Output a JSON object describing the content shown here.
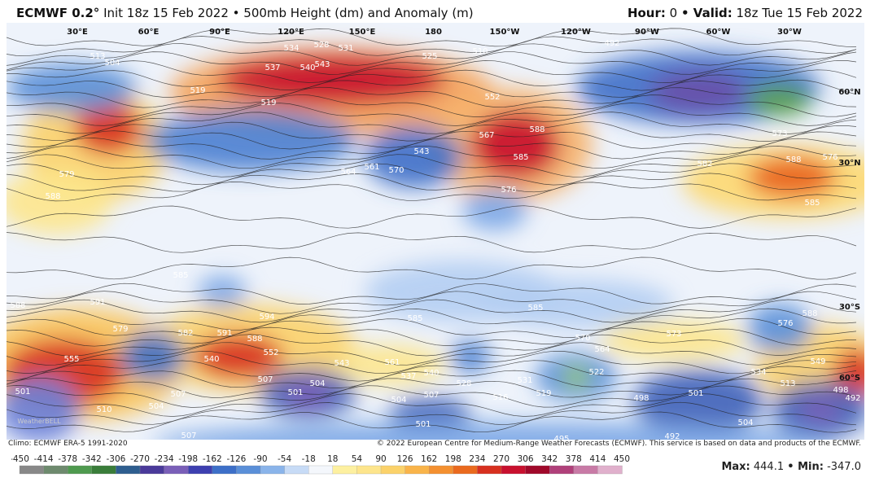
{
  "header": {
    "title": "ECMWF 0.2°",
    "init": "Init 18z 15 Feb 2022 • 500mb Height (dm) and Anomaly (m)",
    "hour_label": "Hour:",
    "hour": "0",
    "valid_label": "• Valid:",
    "valid": "18z Tue 15 Feb 2022"
  },
  "map": {
    "longitude_labels": [
      "30°E",
      "60°E",
      "90°E",
      "120°E",
      "150°E",
      "180",
      "150°W",
      "120°W",
      "90°W",
      "60°W",
      "30°W"
    ],
    "latitude_labels": [
      "60°N",
      "30°N",
      "30°S",
      "60°S"
    ],
    "contour_labels": [
      "513",
      "504",
      "534",
      "528",
      "531",
      "537",
      "540",
      "543",
      "525",
      "510",
      "492",
      "519",
      "519",
      "552",
      "588",
      "567",
      "585",
      "543",
      "564",
      "561",
      "570",
      "576",
      "579",
      "588",
      "582",
      "588",
      "573",
      "576",
      "585",
      "585",
      "585",
      "588",
      "591",
      "594",
      "591",
      "588",
      "582",
      "579",
      "555",
      "540",
      "552",
      "543",
      "561",
      "585",
      "537",
      "540",
      "528",
      "531",
      "519",
      "516",
      "507",
      "504",
      "501",
      "507",
      "504",
      "504",
      "507",
      "510",
      "501",
      "507",
      "501",
      "570",
      "564",
      "573",
      "522",
      "498",
      "534",
      "513",
      "549",
      "576",
      "588",
      "501",
      "504",
      "498",
      "492",
      "492",
      "495"
    ],
    "watermark": "WeatherBELL"
  },
  "footer": {
    "climo": "Climo: ECMWF ERA-5 1991-2020",
    "copyright": "© 2022 European Centre for Medium-Range Weather Forecasts (ECMWF). This service is based on data and products of the ECMWF.",
    "colorbar_ticks": [
      -450,
      -414,
      -378,
      -342,
      -306,
      -270,
      -234,
      -198,
      -162,
      -126,
      -90,
      -54,
      -18,
      18,
      54,
      90,
      126,
      162,
      198,
      234,
      270,
      306,
      342,
      378,
      414,
      450
    ],
    "max_label": "Max:",
    "max": "444.1",
    "min_label": "• Min:",
    "min": "-347.0"
  }
}
